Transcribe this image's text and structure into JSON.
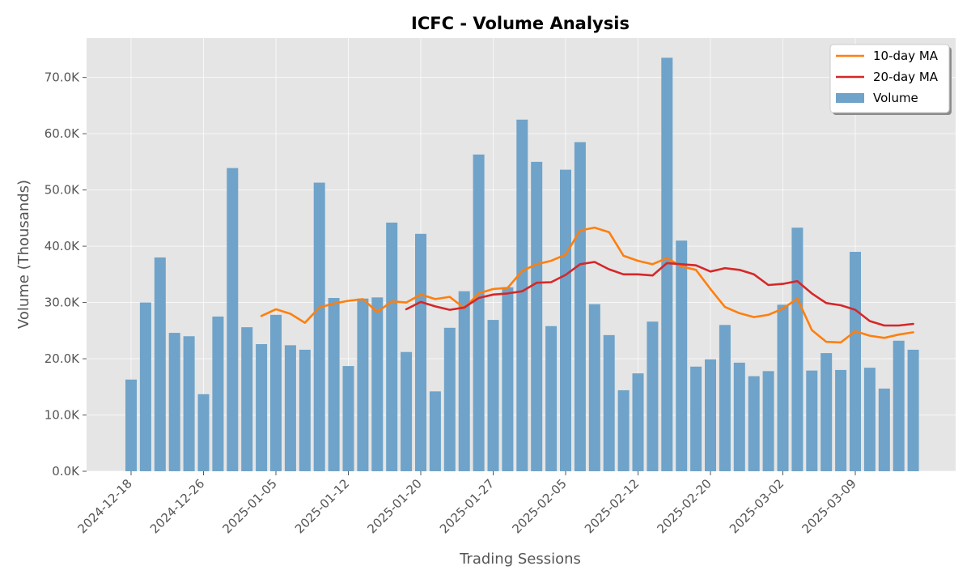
{
  "chart_data": {
    "type": "bar",
    "title": "ICFC - Volume Analysis",
    "xlabel": "Trading Sessions",
    "ylabel": "Volume (Thousands)",
    "ylim": [
      0,
      77000
    ],
    "y_ticks": [
      0,
      10000,
      20000,
      30000,
      40000,
      50000,
      60000,
      70000
    ],
    "y_tick_labels": [
      "0.0K",
      "10.0K",
      "20.0K",
      "30.0K",
      "40.0K",
      "50.0K",
      "60.0K",
      "70.0K"
    ],
    "x_tick_labels": [
      {
        "index": 0,
        "label": "2024-12-18"
      },
      {
        "index": 5,
        "label": "2024-12-26"
      },
      {
        "index": 10,
        "label": "2025-01-05"
      },
      {
        "index": 15,
        "label": "2025-01-12"
      },
      {
        "index": 20,
        "label": "2025-01-20"
      },
      {
        "index": 25,
        "label": "2025-01-27"
      },
      {
        "index": 30,
        "label": "2025-02-05"
      },
      {
        "index": 35,
        "label": "2025-02-12"
      },
      {
        "index": 40,
        "label": "2025-02-20"
      },
      {
        "index": 45,
        "label": "2025-03-02"
      },
      {
        "index": 50,
        "label": "2025-03-09"
      }
    ],
    "grid": true,
    "legend_position": "top-right",
    "series": [
      {
        "name": "Volume",
        "type": "bar",
        "color": "#6fa3c9",
        "values": [
          16300,
          30000,
          38000,
          24600,
          24000,
          13700,
          27500,
          53900,
          25600,
          22600,
          27800,
          22400,
          21600,
          51300,
          30800,
          18700,
          30700,
          30900,
          44200,
          21200,
          42200,
          14200,
          25500,
          32000,
          56300,
          26900,
          32700,
          62500,
          55000,
          25800,
          53600,
          58500,
          29700,
          24200,
          14400,
          17400,
          26600,
          73500,
          41000,
          18600,
          19900,
          26000,
          19300,
          16900,
          17800,
          29600,
          43300,
          17900,
          21000,
          18000,
          39000,
          18400,
          14700,
          23200,
          21600
        ]
      },
      {
        "name": "10-day MA",
        "type": "line",
        "color": "#ff7f0e",
        "start_index": 9,
        "values": [
          27600,
          28800,
          28000,
          26400,
          29100,
          29800,
          30300,
          30600,
          28300,
          30200,
          30000,
          31400,
          30600,
          31000,
          29000,
          31600,
          32400,
          32600,
          35600,
          36800,
          37400,
          38500,
          42800,
          43300,
          42500,
          38300,
          37400,
          36800,
          37900,
          36400,
          35800,
          32400,
          29200,
          28100,
          27400,
          27800,
          28900,
          30700,
          25100,
          23000,
          22900,
          24900,
          24100,
          23700,
          24300,
          24700
        ]
      },
      {
        "name": "20-day MA",
        "type": "line",
        "color": "#d62728",
        "start_index": 19,
        "values": [
          28800,
          30100,
          29300,
          28700,
          29100,
          30800,
          31400,
          31600,
          32000,
          33500,
          33600,
          34900,
          36800,
          37200,
          35900,
          35000,
          35000,
          34800,
          37000,
          36800,
          36600,
          35500,
          36100,
          35800,
          35000,
          33100,
          33300,
          33800,
          31600,
          29900,
          29500,
          28700,
          26700,
          25900,
          25900,
          26200
        ]
      }
    ]
  }
}
